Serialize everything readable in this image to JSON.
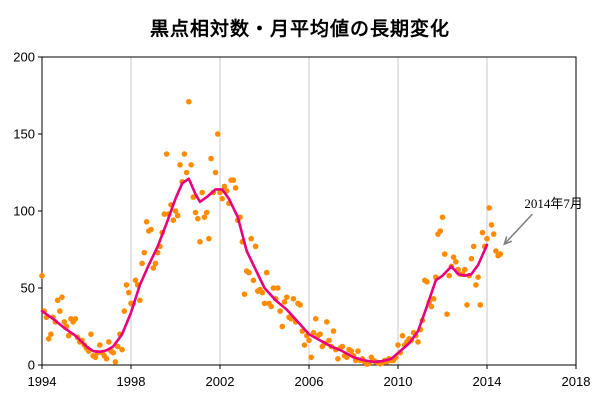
{
  "chart_data": {
    "type": "scatter",
    "title": "黒点相対数・月平均値の長期変化",
    "xlabel": "",
    "ylabel": "",
    "xlim": [
      1994,
      2018
    ],
    "ylim": [
      0,
      200
    ],
    "x_ticks": [
      1994,
      1998,
      2002,
      2006,
      2010,
      2014,
      2018
    ],
    "y_ticks": [
      0,
      50,
      100,
      150,
      200
    ],
    "x_tick_labels": [
      "1994",
      "1998",
      "2002",
      "2006",
      "2010",
      "2014",
      "2018"
    ],
    "y_tick_labels": [
      "0",
      "50",
      "100",
      "150",
      "200"
    ],
    "grid": "vertical",
    "colors": {
      "monthly": "#ff8c00",
      "smoothed": "#e6007e",
      "grid": "#c8c8c8",
      "axis": "#000000",
      "arrow": "#808080"
    },
    "series": [
      {
        "kind": "scatter",
        "points": [
          [
            1994.0,
            58
          ],
          [
            1994.1,
            35
          ],
          [
            1994.2,
            31
          ],
          [
            1994.3,
            17
          ],
          [
            1994.4,
            20
          ],
          [
            1994.5,
            31
          ],
          [
            1994.6,
            28
          ],
          [
            1994.7,
            42
          ],
          [
            1994.8,
            35
          ],
          [
            1994.9,
            44
          ],
          [
            1995.0,
            28
          ],
          [
            1995.1,
            25
          ],
          [
            1995.2,
            19
          ],
          [
            1995.3,
            30
          ],
          [
            1995.4,
            28
          ],
          [
            1995.5,
            30
          ],
          [
            1995.6,
            18
          ],
          [
            1995.7,
            15
          ],
          [
            1995.8,
            16
          ],
          [
            1995.9,
            13
          ],
          [
            1996.0,
            11
          ],
          [
            1996.1,
            9
          ],
          [
            1996.2,
            20
          ],
          [
            1996.3,
            6
          ],
          [
            1996.4,
            5
          ],
          [
            1996.5,
            8
          ],
          [
            1996.6,
            13
          ],
          [
            1996.7,
            8
          ],
          [
            1996.8,
            6
          ],
          [
            1996.9,
            4
          ],
          [
            1997.0,
            15
          ],
          [
            1997.1,
            9
          ],
          [
            1997.2,
            8
          ],
          [
            1997.3,
            2
          ],
          [
            1997.4,
            12
          ],
          [
            1997.5,
            20
          ],
          [
            1997.6,
            10
          ],
          [
            1997.7,
            35
          ],
          [
            1997.8,
            52
          ],
          [
            1997.9,
            47
          ],
          [
            1998.0,
            40
          ],
          [
            1998.1,
            40
          ],
          [
            1998.2,
            55
          ],
          [
            1998.3,
            52
          ],
          [
            1998.4,
            42
          ],
          [
            1998.5,
            66
          ],
          [
            1998.6,
            73
          ],
          [
            1998.7,
            93
          ],
          [
            1998.8,
            87
          ],
          [
            1998.9,
            88
          ],
          [
            1999.0,
            63
          ],
          [
            1999.1,
            66
          ],
          [
            1999.2,
            73
          ],
          [
            1999.3,
            77
          ],
          [
            1999.4,
            86
          ],
          [
            1999.5,
            98
          ],
          [
            1999.6,
            137
          ],
          [
            1999.7,
            98
          ],
          [
            1999.8,
            104
          ],
          [
            1999.9,
            94
          ],
          [
            2000.0,
            100
          ],
          [
            2000.1,
            97
          ],
          [
            2000.2,
            130
          ],
          [
            2000.3,
            119
          ],
          [
            2000.4,
            137
          ],
          [
            2000.5,
            125
          ],
          [
            2000.6,
            171
          ],
          [
            2000.7,
            130
          ],
          [
            2000.8,
            109
          ],
          [
            2000.9,
            99
          ],
          [
            2001.0,
            95
          ],
          [
            2001.1,
            80
          ],
          [
            2001.2,
            112
          ],
          [
            2001.3,
            96
          ],
          [
            2001.4,
            99
          ],
          [
            2001.5,
            82
          ],
          [
            2001.6,
            134
          ],
          [
            2001.7,
            112
          ],
          [
            2001.8,
            125
          ],
          [
            2001.9,
            150
          ],
          [
            2002.0,
            112
          ],
          [
            2002.1,
            108
          ],
          [
            2002.2,
            116
          ],
          [
            2002.3,
            113
          ],
          [
            2002.4,
            105
          ],
          [
            2002.5,
            120
          ],
          [
            2002.6,
            120
          ],
          [
            2002.7,
            115
          ],
          [
            2002.8,
            94
          ],
          [
            2002.9,
            96
          ],
          [
            2003.0,
            80
          ],
          [
            2003.1,
            46
          ],
          [
            2003.2,
            61
          ],
          [
            2003.3,
            60
          ],
          [
            2003.4,
            82
          ],
          [
            2003.5,
            55
          ],
          [
            2003.6,
            77
          ],
          [
            2003.7,
            48
          ],
          [
            2003.8,
            49
          ],
          [
            2003.9,
            47
          ],
          [
            2004.0,
            40
          ],
          [
            2004.1,
            60
          ],
          [
            2004.2,
            40
          ],
          [
            2004.3,
            38
          ],
          [
            2004.4,
            50
          ],
          [
            2004.5,
            43
          ],
          [
            2004.6,
            50
          ],
          [
            2004.7,
            35
          ],
          [
            2004.8,
            25
          ],
          [
            2004.9,
            41
          ],
          [
            2005.0,
            44
          ],
          [
            2005.1,
            31
          ],
          [
            2005.2,
            30
          ],
          [
            2005.3,
            43
          ],
          [
            2005.4,
            28
          ],
          [
            2005.5,
            40
          ],
          [
            2005.6,
            39
          ],
          [
            2005.7,
            22
          ],
          [
            2005.8,
            13
          ],
          [
            2005.9,
            19
          ],
          [
            2006.0,
            16
          ],
          [
            2006.1,
            5
          ],
          [
            2006.2,
            21
          ],
          [
            2006.3,
            30
          ],
          [
            2006.4,
            19
          ],
          [
            2006.5,
            20
          ],
          [
            2006.6,
            12
          ],
          [
            2006.7,
            14
          ],
          [
            2006.8,
            28
          ],
          [
            2006.9,
            16
          ],
          [
            2007.0,
            12
          ],
          [
            2007.1,
            22
          ],
          [
            2007.2,
            10
          ],
          [
            2007.3,
            4
          ],
          [
            2007.4,
            11
          ],
          [
            2007.5,
            12
          ],
          [
            2007.6,
            6
          ],
          [
            2007.7,
            5
          ],
          [
            2007.8,
            10
          ],
          [
            2007.9,
            9
          ],
          [
            2008.0,
            6
          ],
          [
            2008.1,
            3
          ],
          [
            2008.2,
            9
          ],
          [
            2008.3,
            3
          ],
          [
            2008.4,
            4
          ],
          [
            2008.5,
            2
          ],
          [
            2008.6,
            0.5
          ],
          [
            2008.7,
            1
          ],
          [
            2008.8,
            5
          ],
          [
            2008.9,
            3
          ],
          [
            2009.0,
            2
          ],
          [
            2009.1,
            1.5
          ],
          [
            2009.2,
            0.8
          ],
          [
            2009.3,
            1.5
          ],
          [
            2009.4,
            3
          ],
          [
            2009.5,
            2
          ],
          [
            2009.6,
            4
          ],
          [
            2009.7,
            3
          ],
          [
            2009.8,
            3
          ],
          [
            2009.9,
            5
          ],
          [
            2010.0,
            13
          ],
          [
            2010.1,
            8
          ],
          [
            2010.2,
            19
          ],
          [
            2010.3,
            13
          ],
          [
            2010.4,
            15
          ],
          [
            2010.5,
            17
          ],
          [
            2010.6,
            16
          ],
          [
            2010.7,
            21
          ],
          [
            2010.8,
            19
          ],
          [
            2010.9,
            15
          ],
          [
            2011.0,
            23
          ],
          [
            2011.1,
            29
          ],
          [
            2011.2,
            55
          ],
          [
            2011.3,
            54
          ],
          [
            2011.4,
            41
          ],
          [
            2011.5,
            38
          ],
          [
            2011.6,
            43
          ],
          [
            2011.7,
            57
          ],
          [
            2011.8,
            85
          ],
          [
            2011.9,
            87
          ],
          [
            2012.0,
            96
          ],
          [
            2012.1,
            72
          ],
          [
            2012.2,
            33
          ],
          [
            2012.3,
            58
          ],
          [
            2012.4,
            64
          ],
          [
            2012.5,
            70
          ],
          [
            2012.6,
            67
          ],
          [
            2012.7,
            62
          ],
          [
            2012.8,
            59
          ],
          [
            2012.9,
            59
          ],
          [
            2013.0,
            62
          ],
          [
            2013.1,
            39
          ],
          [
            2013.2,
            58
          ],
          [
            2013.3,
            69
          ],
          [
            2013.4,
            77
          ],
          [
            2013.5,
            52
          ],
          [
            2013.6,
            57
          ],
          [
            2013.7,
            39
          ],
          [
            2013.8,
            86
          ],
          [
            2013.9,
            77
          ],
          [
            2014.0,
            82
          ],
          [
            2014.1,
            102
          ],
          [
            2014.2,
            91
          ],
          [
            2014.3,
            85
          ],
          [
            2014.4,
            74
          ],
          [
            2014.5,
            71
          ],
          [
            2014.6,
            72
          ]
        ]
      },
      {
        "kind": "line",
        "points": [
          [
            1994.0,
            35
          ],
          [
            1994.5,
            30
          ],
          [
            1995.0,
            24
          ],
          [
            1995.5,
            19
          ],
          [
            1996.0,
            12
          ],
          [
            1996.3,
            9
          ],
          [
            1996.6,
            8.5
          ],
          [
            1996.9,
            9.5
          ],
          [
            1997.2,
            12
          ],
          [
            1997.6,
            20
          ],
          [
            1998.0,
            34
          ],
          [
            1998.4,
            52
          ],
          [
            1998.8,
            65
          ],
          [
            1999.2,
            77
          ],
          [
            1999.6,
            92
          ],
          [
            2000.0,
            108
          ],
          [
            2000.3,
            118
          ],
          [
            2000.6,
            121
          ],
          [
            2000.9,
            111
          ],
          [
            2001.1,
            106
          ],
          [
            2001.4,
            109
          ],
          [
            2001.8,
            114
          ],
          [
            2002.1,
            114
          ],
          [
            2002.4,
            108
          ],
          [
            2002.8,
            96
          ],
          [
            2003.2,
            74
          ],
          [
            2003.6,
            62
          ],
          [
            2004.0,
            50
          ],
          [
            2004.5,
            42
          ],
          [
            2005.0,
            36
          ],
          [
            2005.5,
            28
          ],
          [
            2006.0,
            20
          ],
          [
            2006.5,
            16
          ],
          [
            2007.0,
            12
          ],
          [
            2007.5,
            9
          ],
          [
            2008.0,
            5
          ],
          [
            2008.5,
            3
          ],
          [
            2008.9,
            2
          ],
          [
            2009.3,
            2.5
          ],
          [
            2009.7,
            4
          ],
          [
            2010.1,
            9
          ],
          [
            2010.5,
            14
          ],
          [
            2010.9,
            22
          ],
          [
            2011.3,
            38
          ],
          [
            2011.7,
            55
          ],
          [
            2012.0,
            58
          ],
          [
            2012.4,
            64
          ],
          [
            2012.7,
            59
          ],
          [
            2013.0,
            58
          ],
          [
            2013.3,
            59
          ],
          [
            2013.6,
            65
          ],
          [
            2014.0,
            78
          ]
        ]
      }
    ],
    "annotations": [
      {
        "text": "2014年7月",
        "target": [
          2014.6,
          72
        ]
      }
    ]
  }
}
